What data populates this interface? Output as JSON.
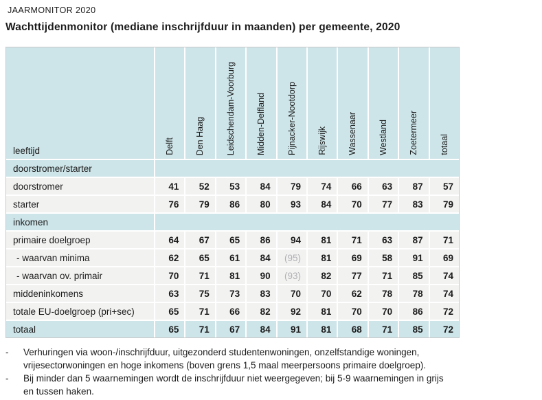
{
  "page": {
    "kicker": "JAARMONITOR 2020",
    "title": "Wachttijdenmonitor (mediane inschrijfduur in maanden) per gemeente, 2020",
    "footnote_marker": "-"
  },
  "colors": {
    "teal": "#cde4e8",
    "cell_grey": "#f2f2f1",
    "muted_value": "#b0b0b4",
    "table_border": "#c8c8c8",
    "text": "#1b1b1b"
  },
  "table": {
    "corner_label": "leeftijd",
    "columns": [
      "Delft",
      "Den Haag",
      "Leidschendam-Voorburg",
      "Midden-Delfland",
      "Pijnacker-Nootdorp",
      "Rijswijk",
      "Wassenaar",
      "Westland",
      "Zoetermeer",
      "totaal"
    ],
    "rows": [
      {
        "type": "section",
        "label": "doorstromer/starter"
      },
      {
        "type": "data",
        "label": "doorstromer",
        "values": [
          "41",
          "52",
          "53",
          "84",
          "79",
          "74",
          "66",
          "63",
          "87",
          "57"
        ]
      },
      {
        "type": "data",
        "label": "starter",
        "values": [
          "76",
          "79",
          "86",
          "80",
          "93",
          "84",
          "70",
          "77",
          "83",
          "79"
        ]
      },
      {
        "type": "section",
        "label": "inkomen"
      },
      {
        "type": "data",
        "label": "primaire doelgroep",
        "values": [
          "64",
          "67",
          "65",
          "86",
          "94",
          "81",
          "71",
          "63",
          "87",
          "71"
        ]
      },
      {
        "type": "data",
        "label": "- waarvan minima",
        "indent": true,
        "values": [
          "62",
          "65",
          "61",
          "84",
          "(95)",
          "81",
          "69",
          "58",
          "91",
          "69"
        ],
        "muted_cols": [
          4
        ]
      },
      {
        "type": "data",
        "label": "- waarvan ov. primair",
        "indent": true,
        "values": [
          "70",
          "71",
          "81",
          "90",
          "(93)",
          "82",
          "77",
          "71",
          "85",
          "74"
        ],
        "muted_cols": [
          4
        ]
      },
      {
        "type": "data",
        "label": "middeninkomens",
        "values": [
          "63",
          "75",
          "73",
          "83",
          "70",
          "70",
          "62",
          "78",
          "78",
          "74"
        ]
      },
      {
        "type": "data",
        "label": "totale EU-doelgroep (pri+sec)",
        "values": [
          "65",
          "71",
          "66",
          "82",
          "92",
          "81",
          "70",
          "70",
          "86",
          "72"
        ]
      },
      {
        "type": "total",
        "label": "totaal",
        "values": [
          "65",
          "71",
          "67",
          "84",
          "91",
          "81",
          "68",
          "71",
          "85",
          "72"
        ]
      }
    ]
  },
  "footnotes": [
    {
      "lines": [
        "Verhuringen via woon-/inschrijfduur, uitgezonderd studentenwoningen, onzelfstandige woningen,",
        "vrijesectorwoningen en hoge inkomens (boven grens 1,5 maal meerpersoons primaire doelgroep)."
      ]
    },
    {
      "lines": [
        "Bij minder dan 5 waarnemingen wordt de inschrijfduur niet weergegeven; bij 5-9 waarnemingen in grijs",
        "en tussen haken."
      ]
    }
  ]
}
